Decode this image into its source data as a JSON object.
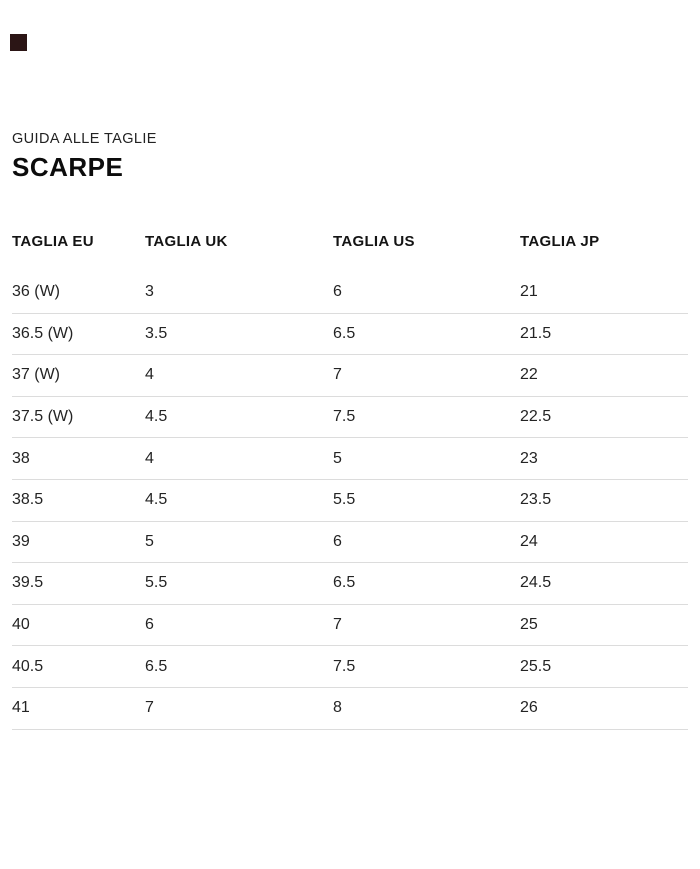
{
  "page": {
    "background": "#ffffff",
    "corner_mark_color": "#2b1515"
  },
  "size_guide": {
    "eyebrow": "GUIDA ALLE TAGLIE",
    "title": "SCARPE"
  },
  "table": {
    "columns": [
      "TAGLIA EU",
      "TAGLIA UK",
      "TAGLIA US",
      "TAGLIA JP"
    ],
    "rows": [
      [
        "36 (W)",
        "3",
        "6",
        "21"
      ],
      [
        "36.5 (W)",
        "3.5",
        "6.5",
        "21.5"
      ],
      [
        "37 (W)",
        "4",
        "7",
        "22"
      ],
      [
        "37.5 (W)",
        "4.5",
        "7.5",
        "22.5"
      ],
      [
        "38",
        "4",
        "5",
        "23"
      ],
      [
        "38.5",
        "4.5",
        "5.5",
        "23.5"
      ],
      [
        "39",
        "5",
        "6",
        "24"
      ],
      [
        "39.5",
        "5.5",
        "6.5",
        "24.5"
      ],
      [
        "40",
        "6",
        "7",
        "25"
      ],
      [
        "40.5",
        "6.5",
        "7.5",
        "25.5"
      ],
      [
        "41",
        "7",
        "8",
        "26"
      ]
    ],
    "divider_color": "#dcdcdc",
    "text_color": "#242424"
  }
}
